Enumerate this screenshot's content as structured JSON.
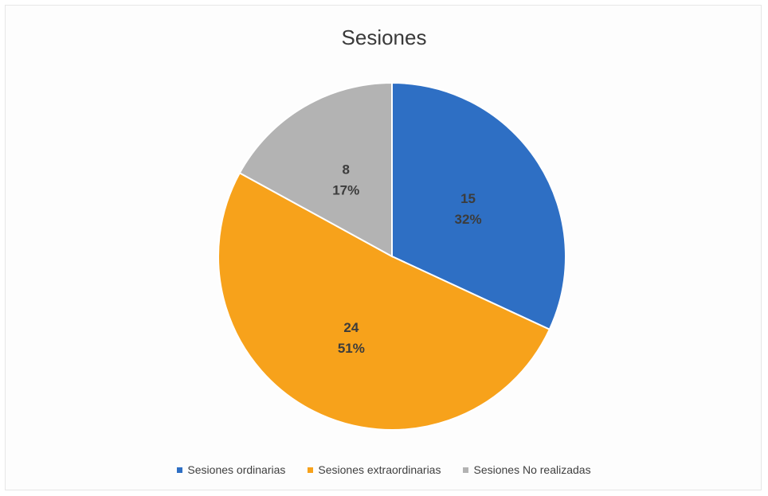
{
  "chart_data": {
    "type": "pie",
    "title": "Sesiones",
    "categories": [
      "Sesiones ordinarias",
      "Sesiones extraordinarias",
      "Sesiones No realizadas"
    ],
    "values": [
      15,
      24,
      8
    ],
    "percent_labels": [
      "32%",
      "51%",
      "17%"
    ],
    "colors": [
      "#2e6fc4",
      "#f7a21b",
      "#b3b3b3"
    ],
    "start_angle": "12 o'clock",
    "direction": "clockwise",
    "legend_position": "bottom"
  }
}
